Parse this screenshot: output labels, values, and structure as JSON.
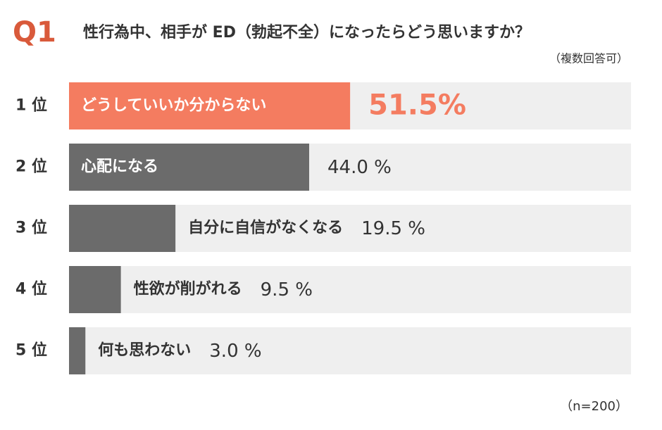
{
  "chart_data": {
    "type": "bar",
    "orientation": "horizontal",
    "question": "Q1",
    "title": "性行為中、相手が ED（勃起不全）になったらどう思いますか？",
    "subtitle": "（複数回答可）",
    "note": "（n=200）",
    "ranks": [
      "1 位",
      "2 位",
      "3 位",
      "4 位",
      "5 位"
    ],
    "categories": [
      "どうしていいか分からない",
      "心配になる",
      "自分に自信がなくなる",
      "性欲が削がれる",
      "何も思わない"
    ],
    "values": [
      51.5,
      44.0,
      19.5,
      9.5,
      3.0
    ],
    "value_labels": [
      "51.5%",
      "44.0 %",
      "19.5 %",
      "9.5 %",
      "3.0 %"
    ],
    "colors": [
      "#f47c60",
      "#6b6b6b",
      "#6b6b6b",
      "#6b6b6b",
      "#6b6b6b"
    ],
    "track_color": "#efefef",
    "xlim": [
      0,
      100
    ]
  }
}
